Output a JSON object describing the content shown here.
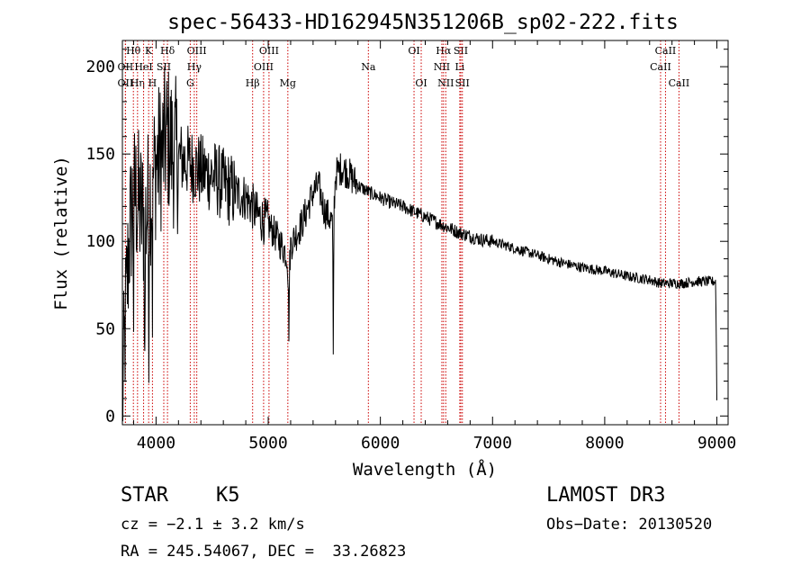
{
  "chart_data": {
    "type": "line",
    "title": "spec-56433-HD162945N351206B_sp02-222.fits",
    "xlabel": "Wavelength (Å)",
    "ylabel": "Flux (relative)",
    "xlim": [
      3700,
      9100
    ],
    "ylim": [
      -5,
      215
    ],
    "xticks": [
      4000,
      5000,
      6000,
      7000,
      8000,
      9000
    ],
    "yticks": [
      0,
      50,
      100,
      150,
      200
    ],
    "xtick_labels": [
      "4000",
      "5000",
      "6000",
      "7000",
      "8000",
      "9000"
    ],
    "ytick_labels": [
      "0",
      "50",
      "100",
      "150",
      "200"
    ],
    "spectrum_anchors": {
      "x": [
        3700,
        3730,
        3760,
        3800,
        3850,
        3900,
        3950,
        4000,
        4050,
        4100,
        4150,
        4200,
        4300,
        4400,
        4500,
        4600,
        4700,
        4800,
        4860,
        4900,
        5000,
        5100,
        5170,
        5180,
        5200,
        5300,
        5400,
        5450,
        5500,
        5580,
        5600,
        5650,
        5700,
        5750,
        5800,
        5900,
        6000,
        6100,
        6200,
        6300,
        6400,
        6500,
        6600,
        6700,
        6800,
        6900,
        7000,
        7200,
        7400,
        7600,
        7800,
        8000,
        8200,
        8400,
        8500,
        8600,
        8700,
        8800,
        8900,
        8990,
        9000
      ],
      "y": [
        5,
        60,
        100,
        130,
        120,
        110,
        130,
        145,
        150,
        160,
        152,
        148,
        145,
        140,
        138,
        132,
        128,
        125,
        120,
        115,
        110,
        100,
        92,
        70,
        98,
        110,
        128,
        132,
        118,
        110,
        138,
        142,
        140,
        136,
        132,
        128,
        125,
        122,
        120,
        117,
        114,
        111,
        108,
        105,
        103,
        101,
        100,
        96,
        92,
        88,
        85,
        83,
        80,
        78,
        76,
        76,
        76,
        77,
        77,
        77,
        10
      ]
    },
    "absorption_lines": [
      {
        "x": 5580,
        "depth": 80
      },
      {
        "x": 5185,
        "depth": 30
      },
      {
        "x": 3900,
        "depth": 90
      },
      {
        "x": 3935,
        "depth": 75
      },
      {
        "x": 3968,
        "depth": 65
      },
      {
        "x": 3800,
        "depth": 70
      }
    ],
    "line_markers": [
      {
        "label": "Hθ",
        "x": 3798,
        "row": 0
      },
      {
        "label": "OII",
        "x": 3727,
        "row": 1
      },
      {
        "label": "OII",
        "x": 3727,
        "row": 2
      },
      {
        "label": "Hη",
        "x": 3835,
        "row": 2
      },
      {
        "label": "HeI",
        "x": 3889,
        "row": 1
      },
      {
        "label": "K",
        "x": 3934,
        "row": 0
      },
      {
        "label": "SII",
        "x": 4069,
        "row": 1
      },
      {
        "label": "H",
        "x": 3968,
        "row": 2
      },
      {
        "label": "Hδ",
        "x": 4102,
        "row": 0
      },
      {
        "label": "OIII",
        "x": 4363,
        "row": 0
      },
      {
        "label": "Hγ",
        "x": 4341,
        "row": 1
      },
      {
        "label": "G",
        "x": 4305,
        "row": 2
      },
      {
        "label": "Hβ",
        "x": 4861,
        "row": 2
      },
      {
        "label": "OIII",
        "x": 4959,
        "row": 1
      },
      {
        "label": "OIII",
        "x": 5007,
        "row": 0
      },
      {
        "label": "Mg",
        "x": 5175,
        "row": 2
      },
      {
        "label": "Na",
        "x": 5893,
        "row": 1
      },
      {
        "label": "OI",
        "x": 6300,
        "row": 0
      },
      {
        "label": "OI",
        "x": 6364,
        "row": 2
      },
      {
        "label": "Hα",
        "x": 6563,
        "row": 0
      },
      {
        "label": "NII",
        "x": 6548,
        "row": 1
      },
      {
        "label": "NII",
        "x": 6583,
        "row": 2
      },
      {
        "label": "SII",
        "x": 6717,
        "row": 0
      },
      {
        "label": "Li",
        "x": 6708,
        "row": 1
      },
      {
        "label": "SII",
        "x": 6731,
        "row": 2
      },
      {
        "label": "CaII",
        "x": 8542,
        "row": 0
      },
      {
        "label": "CaII",
        "x": 8498,
        "row": 1
      },
      {
        "label": "CaII",
        "x": 8662,
        "row": 2
      }
    ]
  },
  "info": {
    "class_label": "STAR",
    "subclass": "K5",
    "survey": "LAMOST DR3",
    "redshift": "cz = −2.1 ± 3.2 km/s",
    "obs_date": "Obs−Date: 20130520",
    "coords": "RA = 245.54067, DEC =  33.26823"
  },
  "colors": {
    "spectrum": "#000000",
    "marker_line": "#cc0000",
    "axis": "#000000",
    "background": "#ffffff"
  }
}
